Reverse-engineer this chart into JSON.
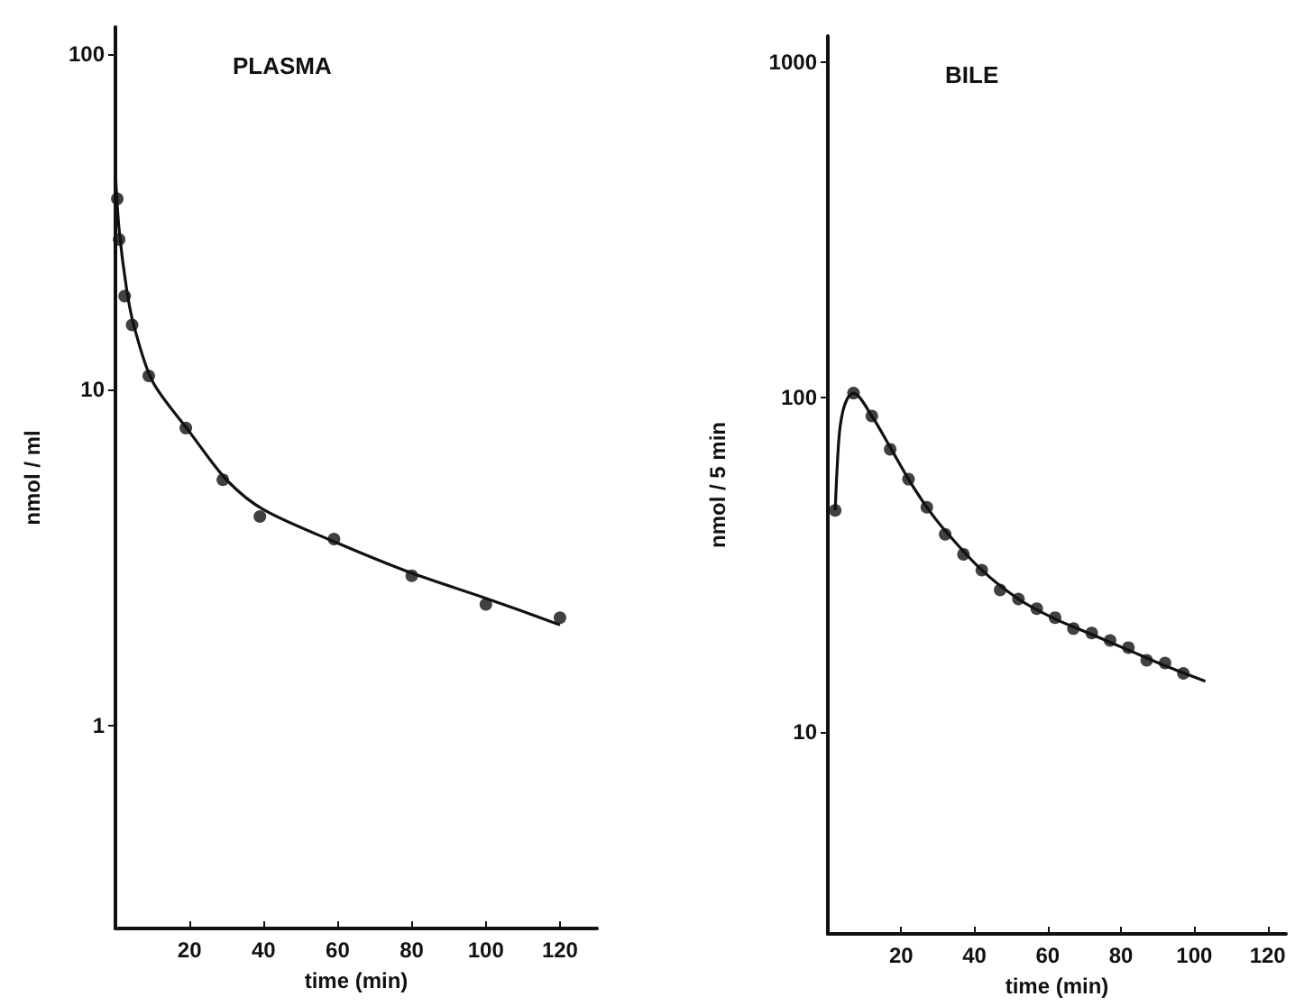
{
  "chart_data": [
    {
      "type": "scatter",
      "title": "PLASMA",
      "xlabel": "time (min)",
      "ylabel": "nmol / ml",
      "log": "y",
      "xlim": [
        0,
        130
      ],
      "xticks": [
        20,
        40,
        60,
        80,
        100,
        120
      ],
      "ylim": [
        0.25,
        120
      ],
      "yticks": [
        1,
        10,
        100
      ],
      "grid": false,
      "series": [
        {
          "marker": "circle",
          "color": "#111111",
          "x": [
            0.5,
            1,
            2.5,
            4.5,
            9,
            19,
            29,
            39,
            59,
            80,
            100,
            120
          ],
          "values": [
            37,
            28,
            19,
            15.6,
            11,
            7.7,
            5.4,
            4.2,
            3.6,
            2.8,
            2.3,
            2.1
          ]
        },
        {
          "type": "line",
          "marker": "none",
          "color": "#111111",
          "x": [
            0,
            1,
            3,
            5,
            10,
            20,
            30,
            40,
            60,
            80,
            100,
            120
          ],
          "values": [
            44,
            30,
            20,
            15.5,
            10.6,
            7.5,
            5.4,
            4.4,
            3.5,
            2.85,
            2.4,
            2.0
          ]
        }
      ]
    },
    {
      "type": "scatter",
      "title": "BILE",
      "xlabel": "time (min)",
      "ylabel": "nmol / 5 min",
      "log": "y",
      "xlim": [
        0,
        125
      ],
      "xticks": [
        20,
        40,
        60,
        80,
        100,
        120
      ],
      "ylim": [
        2.5,
        1200
      ],
      "yticks": [
        10,
        100,
        1000
      ],
      "grid": false,
      "series": [
        {
          "marker": "circle",
          "color": "#111111",
          "x": [
            2,
            7,
            12,
            17,
            22,
            27,
            32,
            37,
            42,
            47,
            52,
            57,
            62,
            67,
            72,
            77,
            82,
            87,
            92,
            97
          ],
          "values": [
            46,
            103,
            88,
            70,
            57,
            47,
            39,
            34,
            30.5,
            26.6,
            25,
            23.4,
            22,
            20.4,
            19.8,
            18.8,
            17.9,
            16.4,
            16.1,
            15
          ]
        },
        {
          "type": "line",
          "marker": "none",
          "color": "#111111",
          "x": [
            2,
            3,
            4,
            5.5,
            7,
            12,
            17,
            22,
            27,
            32,
            42,
            52,
            62,
            72,
            82,
            92,
            103
          ],
          "values": [
            46,
            75,
            90,
            100,
            103,
            88,
            71,
            57,
            47,
            40,
            30.5,
            25,
            21.8,
            19.6,
            17.6,
            15.8,
            14.2
          ]
        }
      ]
    }
  ]
}
